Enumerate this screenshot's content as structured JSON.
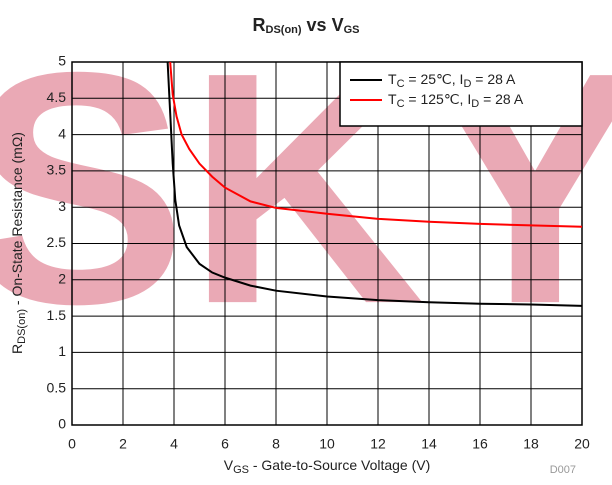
{
  "chart_data": {
    "type": "line",
    "watermark": "SKY",
    "title": [
      "R",
      "DS(on)",
      " vs V",
      "GS"
    ],
    "x_label": [
      "V",
      "GS",
      " - Gate-to-Source Voltage (V)"
    ],
    "y_label": [
      "R",
      "DS(on)",
      " - On-State Resistance (mΩ)"
    ],
    "footnote": "D007",
    "xlim": [
      0,
      20
    ],
    "xticks": [
      0,
      2,
      4,
      6,
      8,
      10,
      12,
      14,
      16,
      18,
      20
    ],
    "ylim": [
      0,
      5
    ],
    "yticks": [
      0,
      0.5,
      1,
      1.5,
      2,
      2.5,
      3,
      3.5,
      4,
      4.5,
      5
    ],
    "grid": true,
    "legend": "upper right",
    "series": [
      {
        "name": [
          "T",
          "C",
          " = 25℃, I",
          "D",
          " = 28 A"
        ],
        "color": "#000000",
        "x": [
          3.75,
          3.85,
          3.95,
          4.05,
          4.2,
          4.5,
          5,
          5.5,
          6,
          7,
          8,
          10,
          12,
          14,
          16,
          18,
          20
        ],
        "values": [
          5,
          4.3,
          3.6,
          3.1,
          2.75,
          2.45,
          2.22,
          2.1,
          2.03,
          1.92,
          1.85,
          1.77,
          1.72,
          1.69,
          1.67,
          1.66,
          1.64
        ]
      },
      {
        "name": [
          "T",
          "C",
          " = 125℃, I",
          "D",
          " = 28 A"
        ],
        "color": "#ff0000",
        "x": [
          3.85,
          3.95,
          4.1,
          4.3,
          4.6,
          5,
          5.5,
          6,
          7,
          8,
          10,
          12,
          14,
          16,
          18,
          20
        ],
        "values": [
          5,
          4.55,
          4.25,
          4.0,
          3.8,
          3.6,
          3.42,
          3.27,
          3.08,
          2.99,
          2.91,
          2.84,
          2.8,
          2.77,
          2.75,
          2.73
        ]
      }
    ]
  }
}
